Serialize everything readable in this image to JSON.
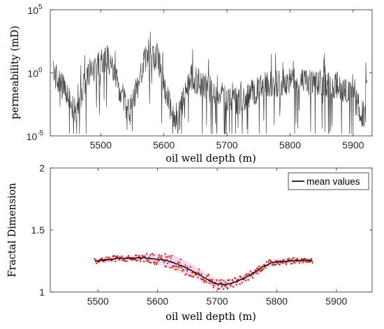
{
  "chart_data": [
    {
      "id": "permeability",
      "type": "line",
      "xlabel": "oil well depth (m)",
      "ylabel": "permeability (mD)",
      "xlim": [
        5420,
        5930
      ],
      "ylim": [
        1e-05,
        100000
      ],
      "yscale": "log",
      "xticks": [
        5500,
        5600,
        5700,
        5800,
        5900
      ],
      "xtick_labels": [
        "5500",
        "5600",
        "5700",
        "5800",
        "5900"
      ],
      "ytick_labels": [
        {
          "value": 1e-05,
          "base": "10",
          "exp": "-5"
        },
        {
          "value": 1,
          "base": "10",
          "exp": "0"
        },
        {
          "value": 100000,
          "base": "10",
          "exp": "5"
        }
      ],
      "grid": false,
      "line_color": "#444444",
      "segments": [
        {
          "x0": 5425,
          "x1": 5450,
          "y0": 1.0,
          "y1": 0.01
        },
        {
          "x0": 5450,
          "x1": 5460,
          "y0": 0.01,
          "y1": 0.0005
        },
        {
          "x0": 5460,
          "x1": 5480,
          "y0": 0.0005,
          "y1": 1.0
        },
        {
          "x0": 5480,
          "x1": 5510,
          "y0": 1.0,
          "y1": 20
        },
        {
          "x0": 5510,
          "x1": 5530,
          "y0": 20,
          "y1": 0.05
        },
        {
          "x0": 5530,
          "x1": 5545,
          "y0": 0.05,
          "y1": 0.0005
        },
        {
          "x0": 5545,
          "x1": 5570,
          "y0": 0.0005,
          "y1": 10
        },
        {
          "x0": 5570,
          "x1": 5590,
          "y0": 10,
          "y1": 20
        },
        {
          "x0": 5590,
          "x1": 5605,
          "y0": 20,
          "y1": 0.01
        },
        {
          "x0": 5605,
          "x1": 5620,
          "y0": 0.01,
          "y1": 0.0001
        },
        {
          "x0": 5620,
          "x1": 5640,
          "y0": 0.0001,
          "y1": 0.5
        },
        {
          "x0": 5640,
          "x1": 5680,
          "y0": 0.5,
          "y1": 0.03
        },
        {
          "x0": 5680,
          "x1": 5720,
          "y0": 0.03,
          "y1": 0.005
        },
        {
          "x0": 5720,
          "x1": 5760,
          "y0": 0.005,
          "y1": 0.1
        },
        {
          "x0": 5760,
          "x1": 5800,
          "y0": 0.1,
          "y1": 0.2
        },
        {
          "x0": 5800,
          "x1": 5840,
          "y0": 0.2,
          "y1": 0.15
        },
        {
          "x0": 5840,
          "x1": 5880,
          "y0": 0.15,
          "y1": 0.1
        },
        {
          "x0": 5880,
          "x1": 5900,
          "y0": 0.1,
          "y1": 0.01
        },
        {
          "x0": 5900,
          "x1": 5920,
          "y0": 0.01,
          "y1": 0.0002
        }
      ]
    },
    {
      "id": "fractal",
      "type": "scatter",
      "xlabel": "oil well depth (m)",
      "ylabel": "Fractal Dimension",
      "xlim": [
        5420,
        5960
      ],
      "ylim": [
        1,
        2
      ],
      "xticks": [
        5500,
        5600,
        5700,
        5800,
        5900
      ],
      "xtick_labels": [
        "5500",
        "5600",
        "5700",
        "5800",
        "5900"
      ],
      "yticks": [
        1,
        1.5,
        2
      ],
      "ytick_labels": [
        "1",
        "1.5",
        "2"
      ],
      "grid": false,
      "legend": {
        "position": "top-right",
        "label": "mean values"
      },
      "mean_color": "#111111",
      "point_color": "#cc2200",
      "band_color": "#ffb3e6",
      "mean_values": {
        "x": [
          5495,
          5510,
          5530,
          5550,
          5570,
          5590,
          5605,
          5615,
          5625,
          5640,
          5655,
          5670,
          5685,
          5700,
          5715,
          5730,
          5745,
          5760,
          5775,
          5790,
          5805,
          5820,
          5840,
          5860
        ],
        "y": [
          1.25,
          1.26,
          1.27,
          1.27,
          1.275,
          1.27,
          1.26,
          1.255,
          1.24,
          1.21,
          1.18,
          1.14,
          1.1,
          1.065,
          1.06,
          1.08,
          1.11,
          1.15,
          1.2,
          1.235,
          1.245,
          1.25,
          1.255,
          1.255
        ]
      },
      "spread": {
        "x": [
          5495,
          5560,
          5600,
          5630,
          5660,
          5690,
          5720,
          5760,
          5800,
          5860
        ],
        "y": [
          0.02,
          0.025,
          0.04,
          0.06,
          0.05,
          0.04,
          0.035,
          0.03,
          0.025,
          0.02
        ]
      }
    }
  ]
}
